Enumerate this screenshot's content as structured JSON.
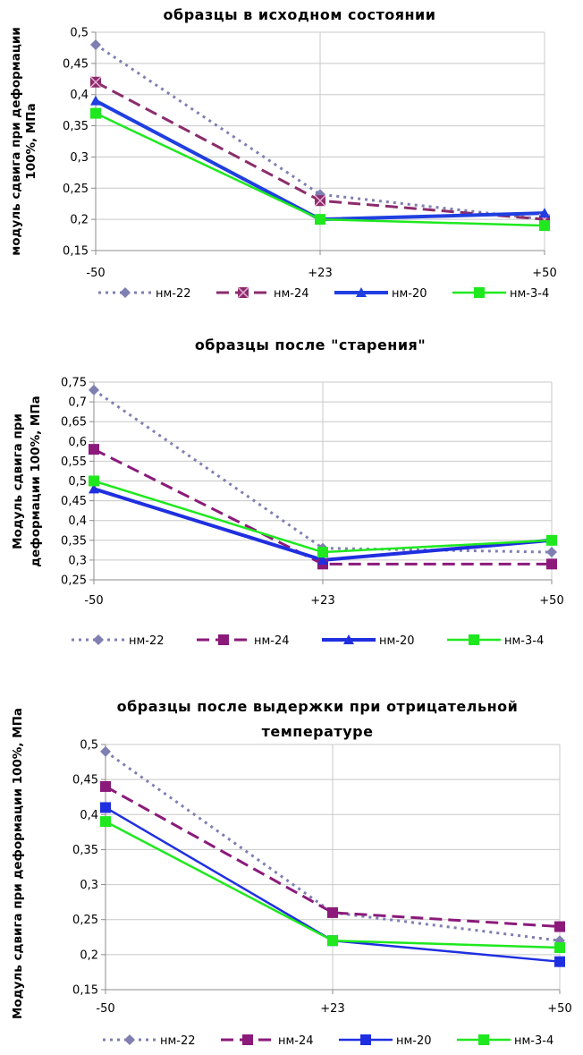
{
  "chart_data": [
    {
      "type": "line",
      "title": [
        "образцы в исходном состоянии"
      ],
      "ylabel": [
        "модуль сдвига при деформации",
        "100%, МПа"
      ],
      "xlabel": "",
      "categories": [
        "-50",
        "+23",
        "+50"
      ],
      "ylim": [
        0.15,
        0.5
      ],
      "ystep": 0.05,
      "yticks": [
        "0,15",
        "0,2",
        "0,25",
        "0,3",
        "0,35",
        "0,4",
        "0,45",
        "0,5"
      ],
      "series": [
        {
          "name": "нм-22",
          "values": [
            0.48,
            0.24,
            0.2
          ],
          "color": "#7F7FB2",
          "dash": "dot",
          "marker": "diamond"
        },
        {
          "name": "нм-24",
          "values": [
            0.42,
            0.23,
            0.2
          ],
          "color": "#8B2C6B",
          "dash": "dash",
          "marker": "square-x"
        },
        {
          "name": "нм-20",
          "values": [
            0.39,
            0.2,
            0.21
          ],
          "color": "#1F3FE0",
          "dash": "solid-bold",
          "marker": "triangle"
        },
        {
          "name": "нм-3-4",
          "values": [
            0.37,
            0.2,
            0.19
          ],
          "color": "#1FE81F",
          "dash": "solid",
          "marker": "square"
        }
      ]
    },
    {
      "type": "line",
      "title": [
        "образцы после \"старения\""
      ],
      "ylabel": [
        "Модуль сдвига при",
        "деформации 100%, МПа"
      ],
      "xlabel": "",
      "categories": [
        "-50",
        "+23",
        "+50"
      ],
      "ylim": [
        0.25,
        0.75
      ],
      "ystep": 0.05,
      "yticks": [
        "0,25",
        "0,3",
        "0,35",
        "0,4",
        "0,45",
        "0,5",
        "0,55",
        "0,6",
        "0,65",
        "0,7",
        "0,75"
      ],
      "series": [
        {
          "name": "нм-22",
          "values": [
            0.73,
            0.33,
            0.32
          ],
          "color": "#7F7FB2",
          "dash": "dot",
          "marker": "diamond"
        },
        {
          "name": "нм-24",
          "values": [
            0.58,
            0.29,
            0.29
          ],
          "color": "#8B1A7A",
          "dash": "dash",
          "marker": "square"
        },
        {
          "name": "нм-20",
          "values": [
            0.48,
            0.3,
            0.35
          ],
          "color": "#1F2FE0",
          "dash": "solid-bold",
          "marker": "triangle"
        },
        {
          "name": "нм-3-4",
          "values": [
            0.5,
            0.32,
            0.35
          ],
          "color": "#1FE81F",
          "dash": "solid",
          "marker": "square"
        }
      ]
    },
    {
      "type": "line",
      "title": [
        "образцы после выдержки при отрицательной",
        "температуре"
      ],
      "ylabel": [
        "Модуль сдвига при деформации 100%, МПа"
      ],
      "xlabel": "",
      "categories": [
        "-50",
        "+23",
        "+50"
      ],
      "ylim": [
        0.15,
        0.5
      ],
      "ystep": 0.05,
      "yticks": [
        "0,15",
        "0,2",
        "0,25",
        "0,3",
        "0,35",
        "0,4",
        "0,45",
        "0,5"
      ],
      "series": [
        {
          "name": "нм-22",
          "values": [
            0.49,
            0.26,
            0.22
          ],
          "color": "#7F7FB2",
          "dash": "dot",
          "marker": "diamond"
        },
        {
          "name": "нм-24",
          "values": [
            0.44,
            0.26,
            0.24
          ],
          "color": "#8B1A7A",
          "dash": "dash",
          "marker": "square"
        },
        {
          "name": "нм-20",
          "values": [
            0.41,
            0.22,
            0.19
          ],
          "color": "#1F2FE0",
          "dash": "solid",
          "marker": "square"
        },
        {
          "name": "нм-3-4",
          "values": [
            0.39,
            0.22,
            0.21
          ],
          "color": "#1FE81F",
          "dash": "solid",
          "marker": "square"
        }
      ]
    }
  ]
}
